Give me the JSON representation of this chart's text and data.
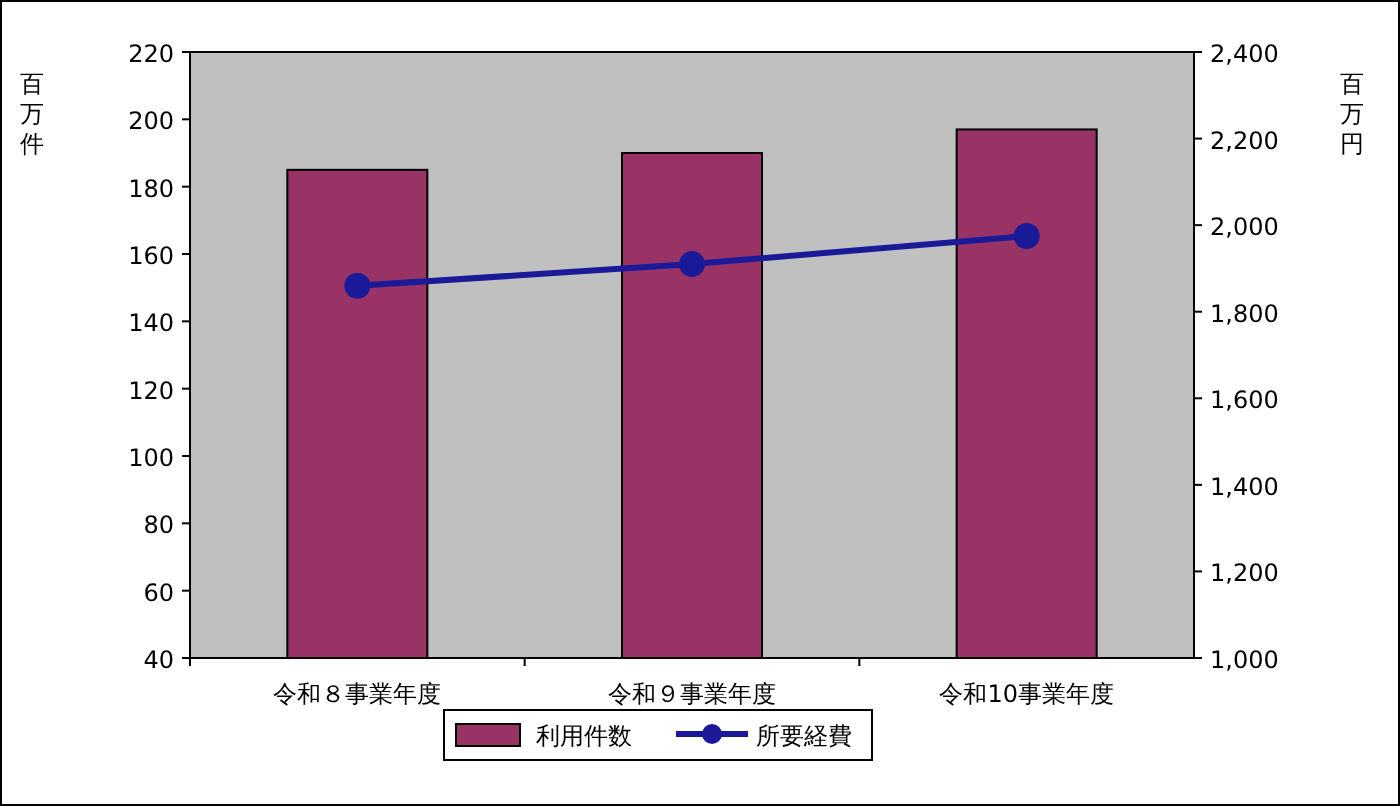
{
  "chart_data": {
    "type": "bar",
    "categories": [
      "令和８事業年度",
      "令和９事業年度",
      "令和10事業年度"
    ],
    "ylabel": "百万件",
    "y2label": "百万円",
    "ylim": [
      40,
      220
    ],
    "yticks": [
      40,
      60,
      80,
      100,
      120,
      140,
      160,
      180,
      200,
      220
    ],
    "y2lim": [
      1000,
      2400
    ],
    "y2ticks": [
      {
        "value": 1000,
        "label": "1,000"
      },
      {
        "value": 1200,
        "label": "1,200"
      },
      {
        "value": 1400,
        "label": "1,400"
      },
      {
        "value": 1600,
        "label": "1,600"
      },
      {
        "value": 1800,
        "label": "1,800"
      },
      {
        "value": 2000,
        "label": "2,000"
      },
      {
        "value": 2200,
        "label": "2,200"
      },
      {
        "value": 2400,
        "label": "2,400"
      }
    ],
    "series": [
      {
        "name": "利用件数",
        "color": "#993366",
        "values": [
          185,
          190,
          197
        ]
      },
      {
        "name": "所要経費",
        "type": "line",
        "axis": "y2",
        "color": "#1a1a99",
        "marker": "circle",
        "values": [
          1860,
          1910,
          1975
        ]
      }
    ],
    "grid": false,
    "legend": "bottom"
  }
}
